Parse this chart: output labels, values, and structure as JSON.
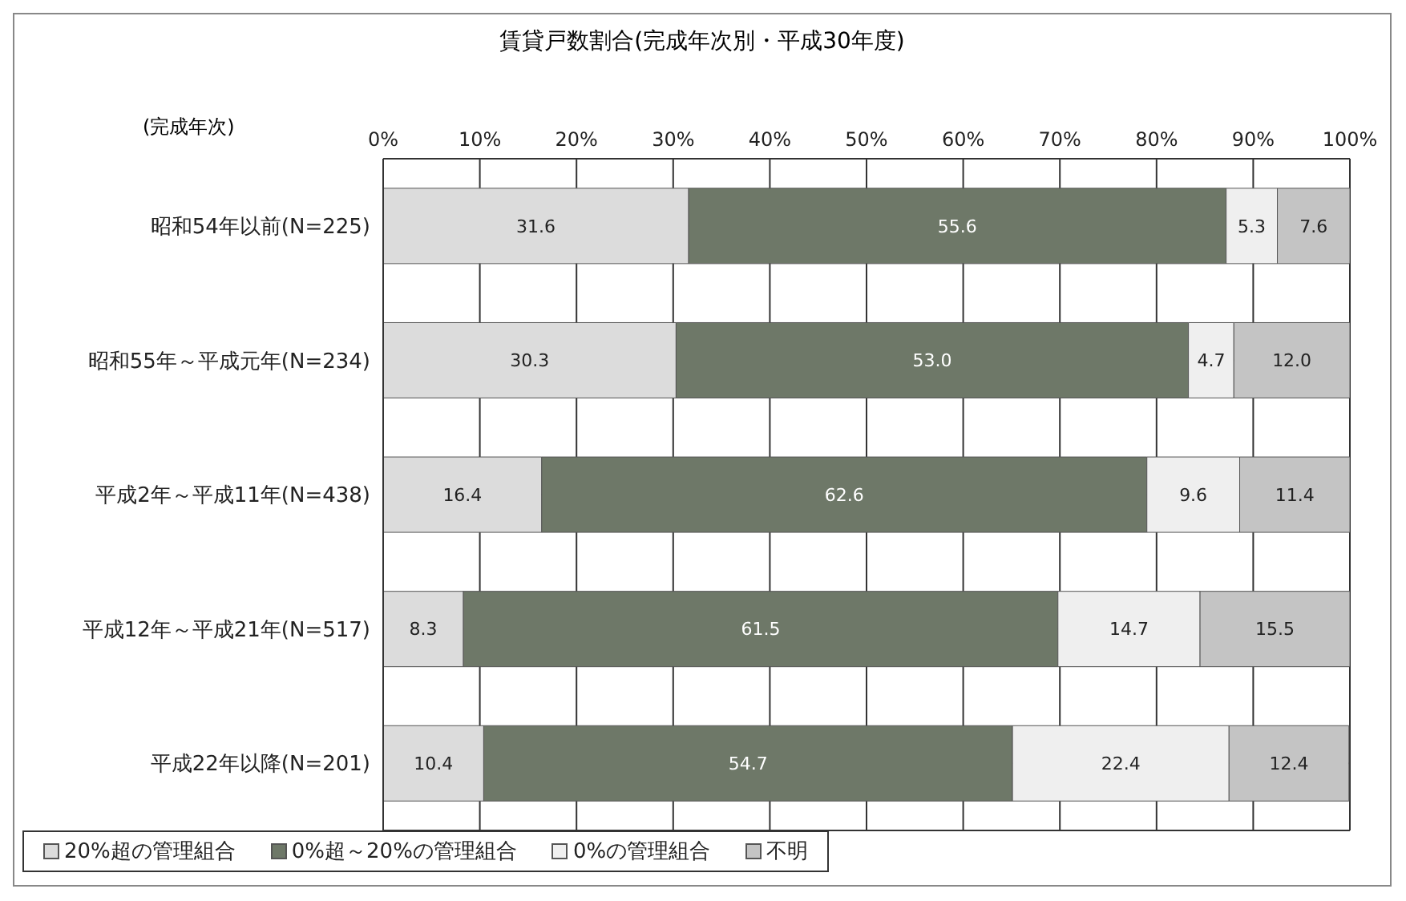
{
  "chart_data": {
    "type": "bar",
    "orientation": "horizontal",
    "stacked": true,
    "title": "賃貸戸数割合(完成年次別・平成30年度)",
    "ylabel": "(完成年次)",
    "categories": [
      "昭和54年以前(N=225)",
      "昭和55年～平成元年(N=234)",
      "平成2年～平成11年(N=438)",
      "平成12年～平成21年(N=517)",
      "平成22年以降(N=201)"
    ],
    "series": [
      {
        "name": "20%超の管理組合",
        "color": "#dcdcdc",
        "values": [
          31.6,
          30.3,
          16.4,
          8.3,
          10.4
        ],
        "value_labels": [
          "31.6",
          "30.3",
          "16.4",
          "8.3",
          "10.4"
        ]
      },
      {
        "name": "0%超～20%の管理組合",
        "color": "#6e7868",
        "values": [
          55.6,
          53.0,
          62.6,
          61.5,
          54.7
        ],
        "value_labels": [
          "55.6",
          "53.0",
          "62.6",
          "61.5",
          "54.7"
        ]
      },
      {
        "name": "0%の管理組合",
        "color": "#efefef",
        "values": [
          5.3,
          4.7,
          9.6,
          14.7,
          22.4
        ],
        "value_labels": [
          "5.3",
          "4.7",
          "9.6",
          "14.7",
          "22.4"
        ]
      },
      {
        "name": "不明",
        "color": "#c4c4c4",
        "values": [
          7.6,
          12.0,
          11.4,
          15.5,
          12.4
        ],
        "value_labels": [
          "7.6",
          "12.0",
          "11.4",
          "15.5",
          "12.4"
        ]
      }
    ],
    "xlim": [
      0,
      100
    ],
    "xticks": [
      {
        "value": 0,
        "label": "0%"
      },
      {
        "value": 10,
        "label": "10%"
      },
      {
        "value": 20,
        "label": "20%"
      },
      {
        "value": 30,
        "label": "30%"
      },
      {
        "value": 40,
        "label": "40%"
      },
      {
        "value": 50,
        "label": "50%"
      },
      {
        "value": 60,
        "label": "60%"
      },
      {
        "value": 70,
        "label": "70%"
      },
      {
        "value": 80,
        "label": "80%"
      },
      {
        "value": 90,
        "label": "90%"
      },
      {
        "value": 100,
        "label": "100%"
      }
    ],
    "grid": true,
    "legend": "bottom"
  }
}
